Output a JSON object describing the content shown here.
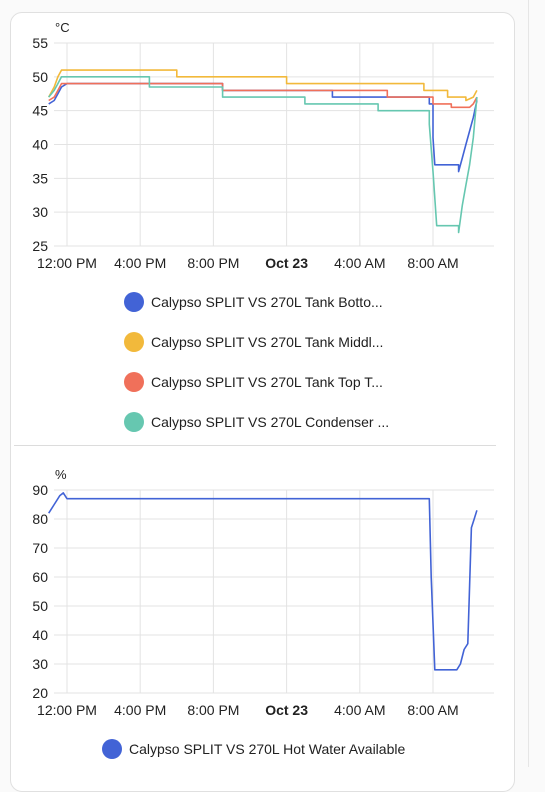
{
  "chart_data": [
    {
      "type": "line",
      "yunit": "°C",
      "ylim": [
        25,
        55
      ],
      "yticks": [
        25,
        30,
        35,
        40,
        45,
        50,
        55
      ],
      "xticks": [
        "12:00 PM",
        "4:00 PM",
        "8:00 PM",
        "Oct 23",
        "4:00 AM",
        "8:00 AM"
      ],
      "xtick_bold": [
        false,
        false,
        false,
        true,
        false,
        false
      ],
      "xlim_hours": [
        -1,
        22.4
      ],
      "series": [
        {
          "name": "Calypso SPLIT VS 270L Tank Botto...",
          "color": "#4263d6",
          "points": [
            [
              -1,
              46
            ],
            [
              -0.7,
              46.5
            ],
            [
              -0.5,
              47.5
            ],
            [
              -0.3,
              48.5
            ],
            [
              0,
              49
            ],
            [
              8.5,
              49
            ],
            [
              8.5,
              48
            ],
            [
              14.5,
              48
            ],
            [
              14.5,
              47
            ],
            [
              19.8,
              47
            ],
            [
              19.8,
              46
            ],
            [
              20,
              46
            ],
            [
              20,
              41
            ],
            [
              20.1,
              37
            ],
            [
              21.4,
              37
            ],
            [
              21.4,
              36
            ],
            [
              21.6,
              38
            ],
            [
              21.8,
              40
            ],
            [
              22,
              42
            ],
            [
              22.2,
              44
            ],
            [
              22.4,
              46.5
            ]
          ]
        },
        {
          "name": "Calypso SPLIT VS 270L Tank Middl...",
          "color": "#f2b93b",
          "points": [
            [
              -1,
              47
            ],
            [
              -0.7,
              48.5
            ],
            [
              -0.5,
              50
            ],
            [
              -0.3,
              51
            ],
            [
              6,
              51
            ],
            [
              6,
              50
            ],
            [
              12,
              50
            ],
            [
              12,
              49
            ],
            [
              19.5,
              49
            ],
            [
              19.5,
              48
            ],
            [
              20.8,
              48
            ],
            [
              20.8,
              47
            ],
            [
              21.8,
              47
            ],
            [
              21.8,
              46.5
            ],
            [
              22.2,
              47
            ],
            [
              22.4,
              48
            ]
          ]
        },
        {
          "name": "Calypso SPLIT VS 270L Tank Top T...",
          "color": "#f0705a",
          "points": [
            [
              -1,
              46.5
            ],
            [
              -0.7,
              47
            ],
            [
              -0.5,
              48
            ],
            [
              -0.3,
              49
            ],
            [
              8.5,
              49
            ],
            [
              8.5,
              48
            ],
            [
              17.5,
              48
            ],
            [
              17.5,
              47
            ],
            [
              20,
              47
            ],
            [
              20,
              46
            ],
            [
              21,
              46
            ],
            [
              21,
              45.5
            ],
            [
              22,
              45.5
            ],
            [
              22.2,
              46
            ],
            [
              22.4,
              47
            ]
          ]
        },
        {
          "name": "Calypso SPLIT VS 270L Condenser ...",
          "color": "#66c7b0",
          "points": [
            [
              -1,
              47
            ],
            [
              -0.7,
              48
            ],
            [
              -0.5,
              49
            ],
            [
              -0.3,
              50
            ],
            [
              4.5,
              50
            ],
            [
              4.5,
              48.5
            ],
            [
              8.5,
              48.5
            ],
            [
              8.5,
              47
            ],
            [
              13,
              47
            ],
            [
              13,
              46
            ],
            [
              17,
              46
            ],
            [
              17,
              45
            ],
            [
              19.8,
              45
            ],
            [
              19.8,
              43
            ],
            [
              20,
              36
            ],
            [
              20.2,
              28
            ],
            [
              21.4,
              28
            ],
            [
              21.4,
              27
            ],
            [
              21.6,
              31
            ],
            [
              21.8,
              34
            ],
            [
              22,
              37
            ],
            [
              22.2,
              41
            ],
            [
              22.4,
              47
            ]
          ]
        }
      ]
    },
    {
      "type": "line",
      "yunit": "%",
      "ylim": [
        20,
        90
      ],
      "yticks": [
        20,
        30,
        40,
        50,
        60,
        70,
        80,
        90
      ],
      "xticks": [
        "12:00 PM",
        "4:00 PM",
        "8:00 PM",
        "Oct 23",
        "4:00 AM",
        "8:00 AM"
      ],
      "xtick_bold": [
        false,
        false,
        false,
        true,
        false,
        false
      ],
      "xlim_hours": [
        -1,
        22.4
      ],
      "series": [
        {
          "name": "Calypso SPLIT VS 270L Hot Water Available",
          "color": "#4263d6",
          "points": [
            [
              -1,
              82
            ],
            [
              -0.7,
              85
            ],
            [
              -0.4,
              88
            ],
            [
              -0.2,
              89
            ],
            [
              0,
              87
            ],
            [
              19.8,
              87
            ],
            [
              19.9,
              60
            ],
            [
              20.1,
              28
            ],
            [
              21.3,
              28
            ],
            [
              21.5,
              30
            ],
            [
              21.7,
              35
            ],
            [
              21.9,
              37
            ],
            [
              22.0,
              57
            ],
            [
              22.1,
              77
            ],
            [
              22.25,
              80
            ],
            [
              22.4,
              83
            ]
          ]
        }
      ]
    }
  ]
}
